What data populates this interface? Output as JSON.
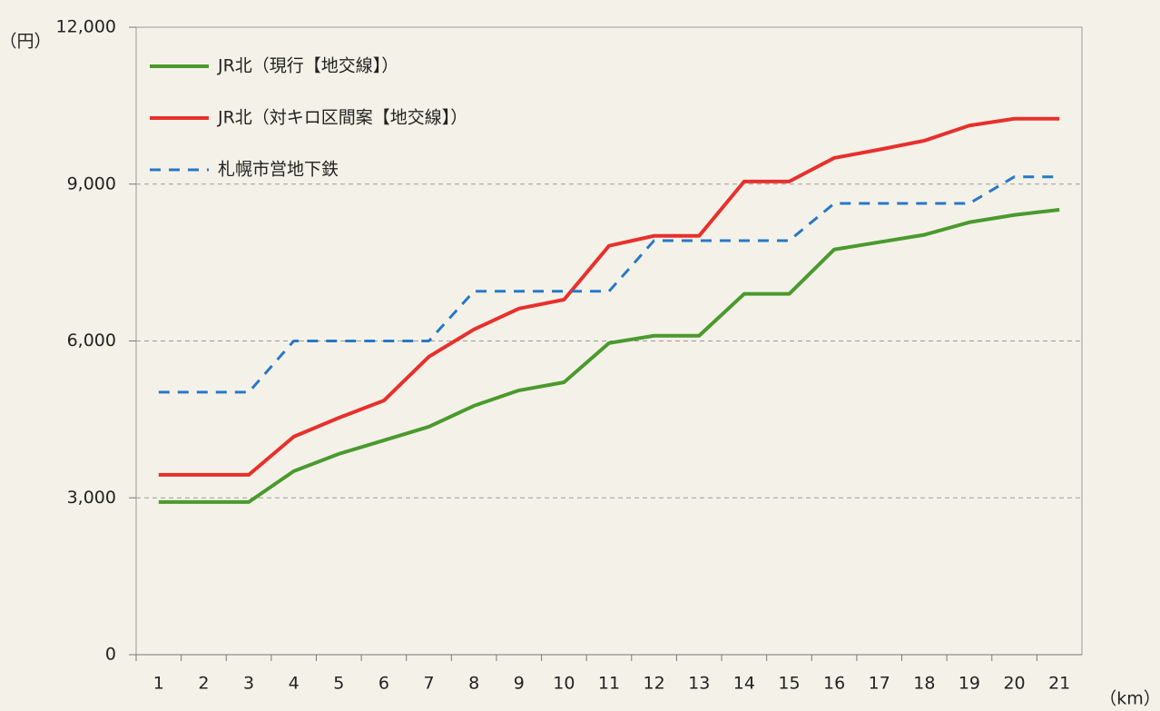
{
  "chart_data": {
    "type": "line",
    "y_label": "（円）",
    "x_label": "（km）",
    "categories": [
      "1",
      "2",
      "3",
      "4",
      "5",
      "6",
      "7",
      "8",
      "9",
      "10",
      "11",
      "12",
      "13",
      "14",
      "15",
      "16",
      "17",
      "18",
      "19",
      "20",
      "21"
    ],
    "series": [
      {
        "name": "JR北（現行【地交線】）",
        "color": "#4a9a2e",
        "line_style": "solid",
        "values": [
          2920,
          2920,
          2920,
          3510,
          3840,
          4100,
          4360,
          4760,
          5055,
          5210,
          5960,
          6100,
          6100,
          6900,
          6900,
          7750,
          7890,
          8030,
          8270,
          8410,
          8510
        ]
      },
      {
        "name": "JR北（対キロ区間案【地交線】）",
        "color": "#e8302c",
        "line_style": "solid",
        "values": [
          3440,
          3440,
          3440,
          4170,
          4530,
          4860,
          5700,
          6220,
          6620,
          6790,
          7820,
          8010,
          8010,
          9050,
          9050,
          9500,
          9660,
          9830,
          10120,
          10250,
          10250
        ]
      },
      {
        "name": "札幌市営地下鉄",
        "color": "#2878c8",
        "line_style": "dashed",
        "values": [
          5020,
          5020,
          5020,
          6000,
          6000,
          6000,
          6000,
          6950,
          6950,
          6950,
          6950,
          7920,
          7920,
          7920,
          7920,
          8630,
          8630,
          8630,
          8630,
          9140,
          9140
        ]
      }
    ],
    "ylim": [
      0,
      12000
    ],
    "yticks": [
      0,
      {
        "value": 3000,
        "label": "3,000"
      },
      {
        "value": 6000,
        "label": "6,000"
      },
      {
        "value": 9000,
        "label": "9,000"
      },
      {
        "value": 12000,
        "label": "12,000"
      }
    ],
    "grid": true,
    "legend": "upper left"
  }
}
